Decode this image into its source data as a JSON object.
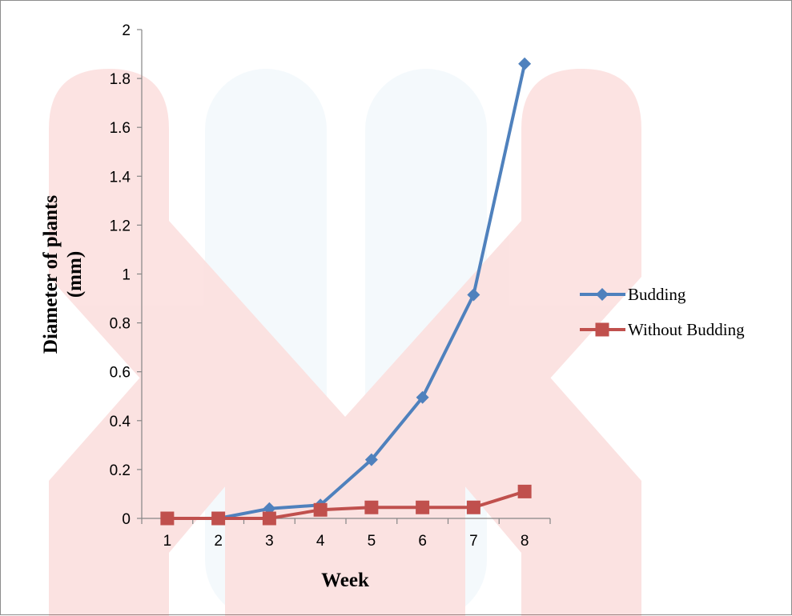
{
  "chart_data": {
    "type": "line",
    "title": "",
    "xlabel": "Week",
    "ylabel": "Diameter of plants (mm)",
    "ylabel_lines": [
      "Diameter of plants",
      "(mm)"
    ],
    "categories": [
      "1",
      "2",
      "3",
      "4",
      "5",
      "6",
      "7",
      "8"
    ],
    "ylim": [
      0,
      2
    ],
    "yticks": [
      "0",
      "0.2",
      "0.4",
      "0.6",
      "0.8",
      "1",
      "1.2",
      "1.4",
      "1.6",
      "1.8",
      "2"
    ],
    "ytick_values": [
      0,
      0.2,
      0.4,
      0.6,
      0.8,
      1.0,
      1.2,
      1.4,
      1.6,
      1.8,
      2.0
    ],
    "grid": false,
    "legend_position": "right",
    "series": [
      {
        "name": "Budding",
        "marker": "diamond",
        "color": "#4f81bd",
        "values": [
          0,
          0,
          0.04,
          0.055,
          0.24,
          0.495,
          0.915,
          1.86
        ]
      },
      {
        "name": "Without Budding",
        "marker": "square",
        "color": "#c0504d",
        "values": [
          0,
          0,
          0,
          0.035,
          0.045,
          0.045,
          0.045,
          0.11
        ]
      }
    ]
  },
  "watermark": {
    "red": "#e8423e",
    "blue": "#b8dcef"
  }
}
